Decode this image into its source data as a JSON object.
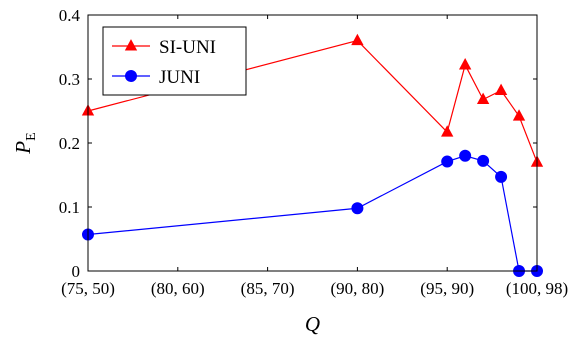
{
  "chart_data": {
    "type": "line",
    "xlabel": "Q",
    "ylabel": {
      "main": "P",
      "sub": "E"
    },
    "x_tick_labels": [
      "(75, 50)",
      "(80, 60)",
      "(85, 70)",
      "(90, 80)",
      "(95, 90)",
      "(100, 98)"
    ],
    "x_tick_positions": [
      0,
      1,
      2,
      3,
      4,
      5
    ],
    "xlim": [
      0,
      5
    ],
    "y_ticks": [
      0,
      0.1,
      0.2,
      0.3,
      0.4
    ],
    "y_tick_labels": [
      "0",
      "0.1",
      "0.2",
      "0.3",
      "0.4"
    ],
    "ylim": [
      0,
      0.4
    ],
    "grid": false,
    "legend_position": "top-left",
    "series": [
      {
        "name": "SI-UNI",
        "color": "#ff0000",
        "marker": "triangle",
        "x": [
          0,
          3,
          4,
          4.2,
          4.4,
          4.6,
          4.8,
          5
        ],
        "y": [
          0.25,
          0.36,
          0.217,
          0.322,
          0.268,
          0.282,
          0.242,
          0.17
        ]
      },
      {
        "name": "JUNI",
        "color": "#0000ff",
        "marker": "circle",
        "x": [
          0,
          3,
          4,
          4.2,
          4.4,
          4.6,
          4.8,
          5
        ],
        "y": [
          0.057,
          0.098,
          0.171,
          0.18,
          0.172,
          0.147,
          0.0,
          0.0
        ]
      }
    ]
  }
}
